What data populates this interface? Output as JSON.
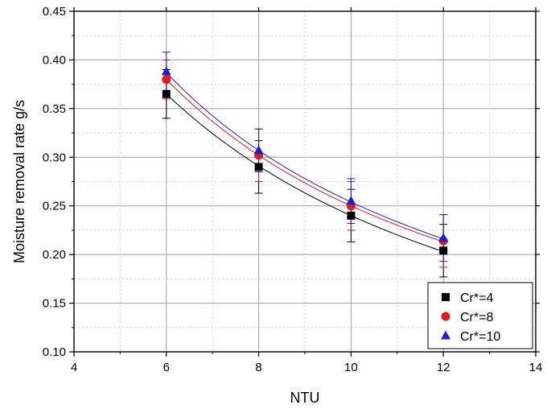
{
  "chart_data": {
    "type": "scatter",
    "title": "",
    "xlabel": "NTU",
    "ylabel": "Moisture removal rate g/s",
    "xlim": [
      4,
      14
    ],
    "ylim": [
      0.1,
      0.45
    ],
    "xticks": [
      4,
      6,
      8,
      10,
      12,
      14
    ],
    "yticks": [
      0.1,
      0.15,
      0.2,
      0.25,
      0.3,
      0.35,
      0.4,
      0.45
    ],
    "xtick_labels": [
      "4",
      "6",
      "8",
      "10",
      "12",
      "14"
    ],
    "ytick_labels": [
      "0.10",
      "0.15",
      "0.20",
      "0.25",
      "0.30",
      "0.35",
      "0.40",
      "0.45"
    ],
    "grid": true,
    "legend_position": "bottom-right",
    "x": [
      6,
      8,
      10,
      12
    ],
    "series": [
      {
        "name": "Cr*=4",
        "marker": "square",
        "color": "#000000",
        "values": [
          0.365,
          0.29,
          0.24,
          0.204
        ],
        "error": [
          0.025,
          0.027,
          0.027,
          0.027
        ],
        "fit": [
          0.365,
          0.291,
          0.24,
          0.203
        ]
      },
      {
        "name": "Cr*=8",
        "marker": "circle",
        "color": "#e31a1c",
        "values": [
          0.38,
          0.302,
          0.25,
          0.214
        ],
        "error": [
          0.02,
          0.027,
          0.025,
          0.027
        ],
        "fit": [
          0.38,
          0.302,
          0.25,
          0.213
        ]
      },
      {
        "name": "Cr*=10",
        "marker": "triangle",
        "color": "#1f1fd1",
        "values": [
          0.388,
          0.307,
          0.255,
          0.217
        ],
        "error": [
          0.02,
          0.022,
          0.023,
          0.024
        ],
        "fit": [
          0.387,
          0.307,
          0.254,
          0.216
        ]
      }
    ]
  }
}
